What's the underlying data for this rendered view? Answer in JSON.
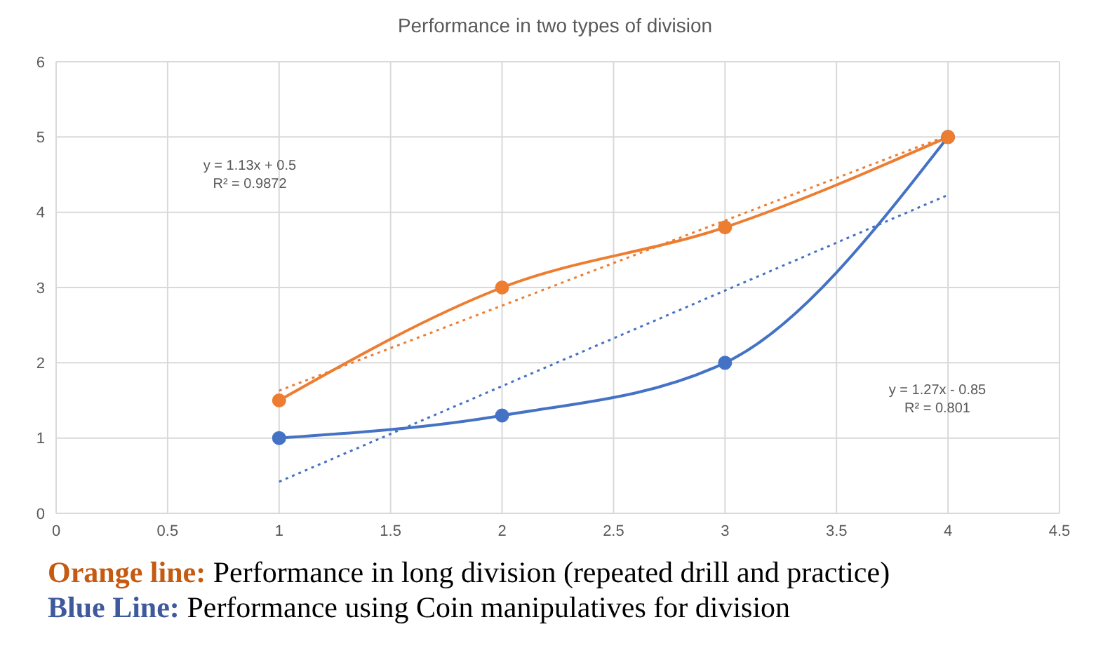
{
  "chart_data": {
    "type": "line",
    "title": "Performance in two types of division",
    "xlim": [
      0,
      4.5
    ],
    "xticks": [
      0,
      0.5,
      1,
      1.5,
      2,
      2.5,
      3,
      3.5,
      4,
      4.5
    ],
    "ylim": [
      0,
      6
    ],
    "yticks": [
      0,
      1,
      2,
      3,
      4,
      5,
      6
    ],
    "grid": true,
    "series": [
      {
        "color": "#ed7d31",
        "x": [
          1,
          2,
          3,
          4
        ],
        "values": [
          1.5,
          3,
          3.8,
          5
        ],
        "marker": "circle",
        "line_style": "solid"
      },
      {
        "color": "#4472c4",
        "x": [
          1,
          2,
          3,
          4
        ],
        "values": [
          1,
          1.3,
          2,
          5
        ],
        "marker": "circle",
        "line_style": "solid"
      },
      {
        "color": "#ed7d31",
        "x": [
          1,
          4
        ],
        "values": [
          1.63,
          5.02
        ],
        "marker": "none",
        "line_style": "dotted"
      },
      {
        "color": "#4472c4",
        "x": [
          1,
          4
        ],
        "values": [
          0.42,
          4.23
        ],
        "marker": "none",
        "line_style": "dotted"
      }
    ],
    "annotations": [
      "y = 1.13x + 0.5\nR² = 0.9872",
      "y = 1.27x - 0.85\nR² = 0.801",
      "Orange line: Performance in long division (repeated drill and practice)",
      "Blue Line: Performance using Coin manipulatives for division"
    ]
  }
}
